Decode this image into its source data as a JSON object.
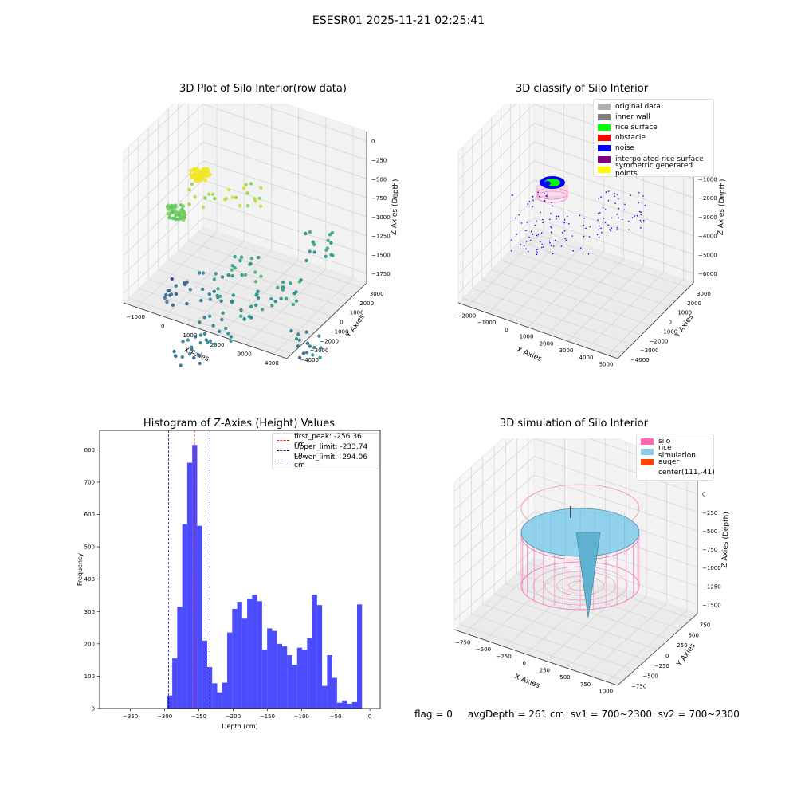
{
  "suptitle": "ESESR01 2025-11-21 02:25:41",
  "info_text": "flag = 0     avgDepth = 261 cm  sv1 = 700~2300  sv2 = 700~2300",
  "chart_data": [
    {
      "type": "scatter",
      "title": "3D Plot of Silo Interior(row data)",
      "xlabel": "X Axies",
      "ylabel": "Y Axies",
      "zlabel": "Z Axies (Depth)",
      "x_ticks": [
        "−1000",
        "0",
        "1000",
        "2000",
        "3000",
        "4000"
      ],
      "y_ticks": [
        "3000",
        "2000",
        "1000",
        "0",
        "−1000",
        "−2000",
        "−3000",
        "−4000"
      ],
      "z_ticks": [
        "0",
        "−250",
        "−500",
        "−750",
        "−1000",
        "−1250",
        "−1500",
        "−1750"
      ]
    },
    {
      "type": "scatter",
      "title": "3D classify of Silo Interior",
      "xlabel": "X Axies",
      "ylabel": "Y Axies",
      "zlabel": "Z Axies (Depth)",
      "x_ticks": [
        "−2000",
        "−1000",
        "0",
        "1000",
        "2000",
        "3000",
        "4000",
        "5000"
      ],
      "y_ticks": [
        "3000",
        "2000",
        "1000",
        "0",
        "−1000",
        "−2000",
        "−3000",
        "−4000"
      ],
      "z_ticks": [
        "1000",
        "0",
        "−1000",
        "−2000",
        "−3000",
        "−4000",
        "−5000",
        "−6000"
      ],
      "legend": [
        {
          "label": "original data",
          "color": "#b0b0b0"
        },
        {
          "label": "inner wall",
          "color": "#808080"
        },
        {
          "label": "rice surface",
          "color": "#00ff00"
        },
        {
          "label": "obstacle",
          "color": "#ff0000"
        },
        {
          "label": "noise",
          "color": "#0000ff"
        },
        {
          "label": "interpolated rice surface",
          "color": "#800080"
        },
        {
          "label": "symmetric generated points",
          "color": "#ffff00"
        }
      ]
    },
    {
      "type": "bar",
      "title": "Histogram of Z-Axies (Height) Values",
      "xlabel": "Depth (cm)",
      "ylabel": "Frequency",
      "xlim": [
        -395,
        15
      ],
      "ylim": [
        0,
        860
      ],
      "x_ticks": [
        -350,
        -300,
        -250,
        -200,
        -150,
        -100,
        -50,
        0
      ],
      "y_ticks": [
        0,
        100,
        200,
        300,
        400,
        500,
        600,
        700,
        800
      ],
      "bin_width": 7.3,
      "bin_start": -296.2,
      "values": [
        40,
        155,
        315,
        570,
        760,
        815,
        565,
        210,
        128,
        78,
        50,
        80,
        235,
        308,
        330,
        278,
        340,
        352,
        332,
        182,
        248,
        240,
        200,
        192,
        165,
        135,
        188,
        182,
        218,
        352,
        320,
        70,
        165,
        95,
        18,
        25,
        15,
        20,
        322
      ],
      "bar_color": "#0000ff",
      "vlines": [
        {
          "label": "first_peak: -256.36 cm",
          "x": -256.36,
          "color": "#ff0000"
        },
        {
          "label": "Upper_limit: -233.74 cm",
          "x": -233.74,
          "color": "#00008b"
        },
        {
          "label": "Lower_limit: -294.06 cm",
          "x": -294.06,
          "color": "#00008b"
        }
      ]
    },
    {
      "type": "area",
      "title": "3D simulation of Silo Interior",
      "xlabel": "X Axies",
      "ylabel": "Y Axies",
      "zlabel": "Z Axies (Depth)",
      "x_ticks": [
        "−750",
        "−500",
        "−250",
        "0",
        "250",
        "500",
        "750",
        "1000"
      ],
      "y_ticks": [
        "750",
        "500",
        "250",
        "0",
        "−250",
        "−500",
        "−750"
      ],
      "z_ticks": [
        "250",
        "0",
        "−250",
        "−500",
        "−750",
        "−1000",
        "−1250",
        "−1500"
      ],
      "legend": [
        {
          "label": "silo",
          "color": "#ff69b4"
        },
        {
          "label": "rice simulation",
          "color": "#87ceeb"
        },
        {
          "label": "auger",
          "color": "#ff4500"
        },
        {
          "label": "center(111,-41)",
          "color": ""
        }
      ]
    }
  ]
}
